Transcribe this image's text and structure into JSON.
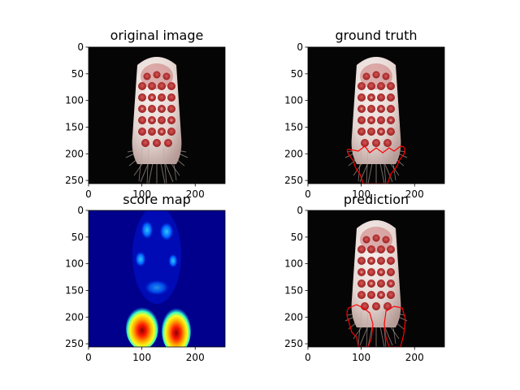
{
  "figure": {
    "panels": [
      {
        "title": "original image",
        "kind": "photo"
      },
      {
        "title": "ground truth",
        "kind": "photo_gt"
      },
      {
        "title": "score map",
        "kind": "heatmap"
      },
      {
        "title": "prediction",
        "kind": "photo_pred"
      }
    ]
  },
  "chart_data": [
    {
      "type": "heatmap",
      "title": "original image",
      "xlim": [
        0,
        256
      ],
      "ylim": [
        256,
        0
      ],
      "xticks": [
        0,
        100,
        200
      ],
      "yticks": [
        0,
        50,
        100,
        150,
        200,
        250
      ],
      "content": "photo of a white toothbrush head with red bristle tufts and fanned-out bristles at the bottom"
    },
    {
      "type": "heatmap",
      "title": "ground truth",
      "xlim": [
        0,
        256
      ],
      "ylim": [
        256,
        0
      ],
      "xticks": [
        0,
        100,
        200
      ],
      "yticks": [
        0,
        50,
        100,
        150,
        200,
        250
      ],
      "contour_color": "#ff0000",
      "contour_region": "bristle defect region near y 180-256, x 70-185"
    },
    {
      "type": "heatmap",
      "title": "score map",
      "xlim": [
        0,
        256
      ],
      "ylim": [
        256,
        0
      ],
      "xticks": [
        0,
        100,
        200
      ],
      "yticks": [
        0,
        50,
        100,
        150,
        200,
        250
      ],
      "colormap": "jet",
      "hotspots": [
        {
          "x": 100,
          "y": 215,
          "level": "high"
        },
        {
          "x": 165,
          "y": 220,
          "level": "high"
        }
      ]
    },
    {
      "type": "heatmap",
      "title": "prediction",
      "xlim": [
        0,
        256
      ],
      "ylim": [
        256,
        0
      ],
      "xticks": [
        0,
        100,
        200
      ],
      "yticks": [
        0,
        50,
        100,
        150,
        200,
        250
      ],
      "contour_color": "#ff0000",
      "contour_region": "two predicted regions near y 175-256, x 75-185"
    }
  ]
}
